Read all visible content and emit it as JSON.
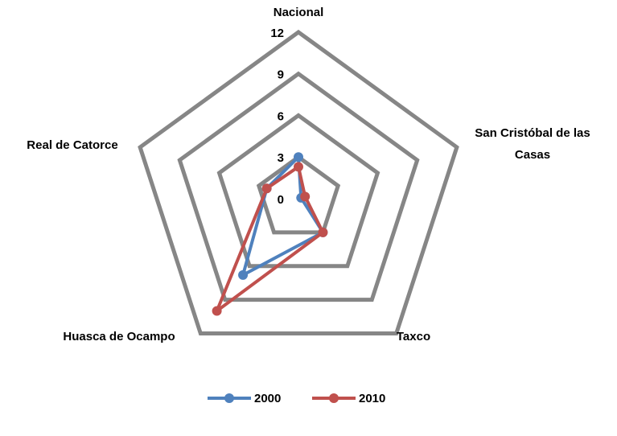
{
  "chart_data": {
    "type": "radar",
    "categories": [
      "Nacional",
      "San Cristóbal de las Casas",
      "Taxco",
      "Huasca de Ocampo",
      "Real de Catorce"
    ],
    "series": [
      {
        "name": "2000",
        "color": "#4f81bd",
        "values": [
          3,
          0.2,
          3,
          6.8,
          2.4
        ]
      },
      {
        "name": "2010",
        "color": "#c0504d",
        "values": [
          2.3,
          0.5,
          3,
          10,
          2.4
        ]
      }
    ],
    "rlim": [
      0,
      12
    ],
    "rticks": [
      0,
      3,
      6,
      9,
      12
    ],
    "grid": true,
    "legend": "bottom"
  }
}
